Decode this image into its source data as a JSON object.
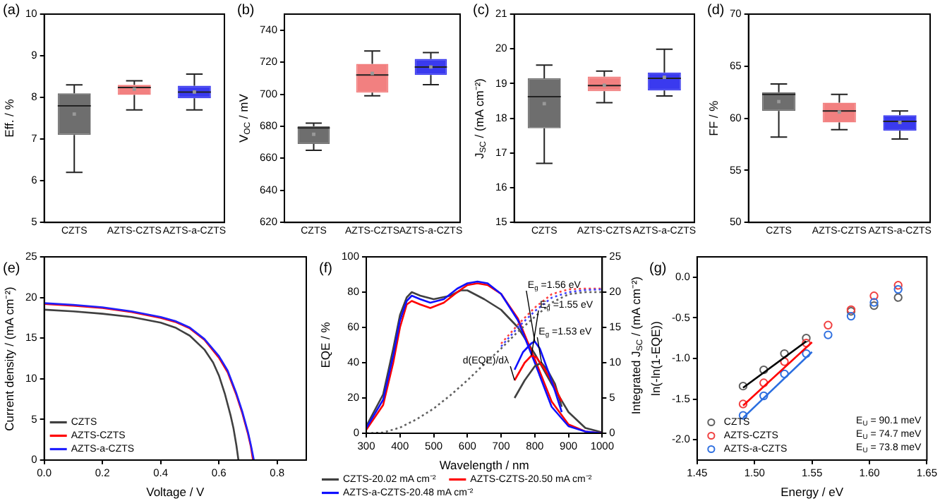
{
  "chart_data": [
    {
      "type": "box",
      "title": "(a)",
      "ylabel": "Eff. / %",
      "categories": [
        "CZTS",
        "AZTS-CZTS",
        "AZTS-a-CZTS"
      ],
      "colors": [
        "#6e6e6e",
        "#f28080",
        "#3a3aef"
      ],
      "boxes": [
        {
          "low": 6.2,
          "q1": 7.1,
          "median": 7.8,
          "q3": 8.1,
          "high": 8.3,
          "mean": 7.6
        },
        {
          "low": 7.7,
          "q1": 8.06,
          "median": 8.24,
          "q3": 8.3,
          "high": 8.4,
          "mean": 8.2
        },
        {
          "low": 7.7,
          "q1": 7.98,
          "median": 8.13,
          "q3": 8.28,
          "high": 8.56,
          "mean": 8.13
        }
      ],
      "ylim": [
        5,
        10
      ],
      "yticks": [
        5,
        6,
        7,
        8,
        9,
        10
      ]
    },
    {
      "type": "box",
      "title": "(b)",
      "ylabel": "V$_{OC}$ / mV",
      "categories": [
        "CZTS",
        "AZTS-CZTS",
        "AZTS-a-CZTS"
      ],
      "colors": [
        "#6e6e6e",
        "#f28080",
        "#3a3aef"
      ],
      "boxes": [
        {
          "low": 665,
          "q1": 669,
          "median": 679,
          "q3": 680,
          "high": 682,
          "mean": 675
        },
        {
          "low": 699,
          "q1": 701,
          "median": 712,
          "q3": 719,
          "high": 727,
          "mean": 713
        },
        {
          "low": 706,
          "q1": 712,
          "median": 717,
          "q3": 722,
          "high": 726,
          "mean": 717
        }
      ],
      "ylim": [
        620,
        750
      ],
      "yticks": [
        620,
        640,
        660,
        680,
        700,
        720,
        740
      ]
    },
    {
      "type": "box",
      "title": "(c)",
      "ylabel": "J$_{SC}$ / (mA cm⁻²)",
      "categories": [
        "CZTS",
        "AZTS-CZTS",
        "AZTS-a-CZTS"
      ],
      "colors": [
        "#6e6e6e",
        "#f28080",
        "#3a3aef"
      ],
      "boxes": [
        {
          "low": 16.7,
          "q1": 17.71,
          "median": 18.62,
          "q3": 19.15,
          "high": 19.53,
          "mean": 18.42
        },
        {
          "low": 18.45,
          "q1": 18.78,
          "median": 18.94,
          "q3": 19.2,
          "high": 19.36,
          "mean": 18.95
        },
        {
          "low": 18.64,
          "q1": 18.8,
          "median": 19.15,
          "q3": 19.32,
          "high": 19.99,
          "mean": 19.18
        }
      ],
      "ylim": [
        15,
        21
      ],
      "yticks": [
        15,
        16,
        17,
        18,
        19,
        20,
        21
      ]
    },
    {
      "type": "box",
      "title": "(d)",
      "ylabel": "FF / %",
      "categories": [
        "CZTS",
        "AZTS-CZTS",
        "AZTS-a-CZTS"
      ],
      "colors": [
        "#6e6e6e",
        "#f28080",
        "#3a3aef"
      ],
      "boxes": [
        {
          "low": 58.2,
          "q1": 60.7,
          "median": 62.3,
          "q3": 62.5,
          "high": 63.3,
          "mean": 61.6
        },
        {
          "low": 58.9,
          "q1": 59.6,
          "median": 60.7,
          "q3": 61.5,
          "high": 62.3,
          "mean": 60.6
        },
        {
          "low": 58,
          "q1": 58.8,
          "median": 59.7,
          "q3": 60.3,
          "high": 60.7,
          "mean": 59.6
        }
      ],
      "ylim": [
        50,
        70
      ],
      "yticks": [
        50,
        55,
        60,
        65,
        70
      ]
    },
    {
      "type": "line",
      "title": "(e)",
      "xlabel": "Voltage / V",
      "ylabel": "Current density / (mA cm⁻²)",
      "xlim": [
        0,
        0.9
      ],
      "xticks": [
        {
          "value": 0,
          "label": "0.0"
        },
        0.2,
        0.4,
        0.6,
        0.8
      ],
      "ylim": [
        0,
        25
      ],
      "yticks": [
        0,
        5,
        10,
        15,
        20,
        25
      ],
      "legend": "bottom left",
      "series": [
        {
          "name": "CZTS",
          "color": "#404040",
          "x": [
            0,
            0.1,
            0.2,
            0.3,
            0.4,
            0.45,
            0.5,
            0.55,
            0.58,
            0.6,
            0.62,
            0.64,
            0.65,
            0.66,
            0.667
          ],
          "values": [
            18.5,
            18.3,
            18.0,
            17.6,
            16.9,
            16.3,
            15.3,
            13.6,
            12.0,
            10.4,
            8.2,
            5.5,
            3.9,
            1.8,
            0
          ]
        },
        {
          "name": "AZTS-CZTS",
          "color": "#ff0000",
          "x": [
            0,
            0.1,
            0.2,
            0.3,
            0.4,
            0.45,
            0.5,
            0.55,
            0.6,
            0.63,
            0.66,
            0.68,
            0.7,
            0.71,
            0.717
          ],
          "values": [
            19.2,
            19.0,
            18.7,
            18.2,
            17.5,
            17.0,
            16.2,
            14.8,
            12.6,
            10.8,
            8.0,
            5.8,
            3.2,
            1.6,
            0
          ]
        },
        {
          "name": "AZTS-a-CZTS",
          "color": "#2020ff",
          "x": [
            0,
            0.1,
            0.2,
            0.3,
            0.4,
            0.45,
            0.5,
            0.55,
            0.6,
            0.63,
            0.66,
            0.68,
            0.7,
            0.71,
            0.72
          ],
          "values": [
            19.3,
            19.1,
            18.8,
            18.3,
            17.6,
            17.1,
            16.3,
            14.9,
            12.8,
            11.0,
            8.2,
            6.0,
            3.4,
            1.8,
            0
          ]
        }
      ]
    },
    {
      "type": "line",
      "title": "(f)",
      "xlabel": "Wavelength / nm",
      "ylabel": "EQE / %",
      "y2label": "Integrated J$_{SC}$ / (mA cm⁻²)",
      "xlim": [
        300,
        1000
      ],
      "xticks": [
        300,
        400,
        500,
        600,
        700,
        800,
        900,
        1000
      ],
      "ylim": [
        0,
        100
      ],
      "yticks": [
        0,
        20,
        40,
        60,
        80,
        100
      ],
      "y2lim": [
        0,
        25
      ],
      "y2ticks": [
        0,
        5,
        10,
        15,
        20,
        25
      ],
      "legend": "bottom",
      "annotations": [
        {
          "text": "E$_{g}$ =1.56 eV",
          "x": 800,
          "y": 52
        },
        {
          "text": "E$_{g}$ =1.55 eV",
          "x": 790,
          "y": 44
        },
        {
          "text": "E$_{g}$ =1.53 eV",
          "x": 820,
          "y": 40
        },
        {
          "text": "d(EQE)/dλ",
          "x": 740,
          "y": 30
        }
      ],
      "series": [
        {
          "name": "CZTS-20.02 mA cm⁻²",
          "color": "#404040",
          "x": [
            300,
            350,
            380,
            400,
            420,
            435,
            460,
            500,
            550,
            580,
            600,
            620,
            650,
            700,
            750,
            800,
            850,
            900,
            950,
            1000
          ],
          "values": [
            4,
            22,
            48,
            67,
            77,
            80,
            78,
            76,
            78,
            81,
            81,
            79,
            76,
            70,
            60,
            45,
            28,
            12,
            3,
            0.5
          ]
        },
        {
          "name": "AZTS-CZTS-20.50 mA cm⁻²",
          "color": "#ff0000",
          "x": [
            300,
            350,
            380,
            400,
            420,
            435,
            460,
            490,
            530,
            570,
            600,
            630,
            660,
            700,
            750,
            800,
            850,
            900,
            950,
            1000
          ],
          "values": [
            2,
            16,
            40,
            60,
            73,
            75,
            73,
            71,
            74,
            80,
            84,
            85,
            84,
            79,
            65,
            42,
            18,
            5,
            1,
            0
          ]
        },
        {
          "name": "AZTS-a-CZTS-20.48 mA cm⁻²",
          "color": "#1010ff",
          "x": [
            300,
            350,
            380,
            400,
            420,
            435,
            460,
            490,
            530,
            570,
            600,
            630,
            660,
            700,
            750,
            800,
            850,
            900,
            950,
            1000
          ],
          "values": [
            3,
            19,
            44,
            64,
            75,
            78,
            76,
            74,
            76,
            82,
            85,
            86,
            85,
            79,
            64,
            40,
            15,
            4,
            1,
            0
          ]
        },
        {
          "color": "#606060",
          "axis": "y2",
          "line_style": "dotted",
          "x": [
            300,
            350,
            400,
            450,
            500,
            550,
            600,
            650,
            700,
            750,
            800,
            850,
            900,
            950,
            1000
          ],
          "values": [
            0,
            0.1,
            0.8,
            2,
            3.5,
            5.4,
            7.5,
            9.8,
            12,
            14.4,
            16.5,
            18.5,
            19.7,
            20,
            20
          ]
        },
        {
          "color": "#ff4040",
          "axis": "y2",
          "line_style": "dotted",
          "x": [
            700,
            750,
            800,
            850,
            900,
            950,
            1000
          ],
          "values": [
            12.7,
            15.4,
            17.8,
            19.7,
            20.4,
            20.5,
            20.5
          ]
        },
        {
          "color": "#4040ff",
          "axis": "y2",
          "line_style": "dotted",
          "x": [
            700,
            750,
            800,
            850,
            900,
            950,
            1000
          ],
          "values": [
            12.3,
            15,
            17.3,
            19.2,
            20,
            20.3,
            20.4
          ]
        },
        {
          "color": "#404040",
          "x": [
            740,
            770,
            800,
            820,
            840,
            860,
            880
          ],
          "values": [
            20,
            30,
            38,
            40,
            35,
            28,
            15
          ]
        },
        {
          "color": "#ff0000",
          "x": [
            740,
            770,
            790,
            805,
            830,
            855,
            880
          ],
          "values": [
            30,
            40,
            44,
            43,
            36,
            28,
            18
          ]
        },
        {
          "color": "#1010ff",
          "x": [
            740,
            765,
            790,
            800,
            815,
            840,
            860,
            880
          ],
          "values": [
            36,
            46,
            51,
            52,
            48,
            35,
            24,
            12
          ]
        }
      ]
    },
    {
      "type": "scatter",
      "title": "(g)",
      "xlabel": "Energy / eV",
      "ylabel": "ln(-ln(1-EQE))",
      "xlim": [
        1.45,
        1.65
      ],
      "xticks": [
        1.45,
        {
          "value": 1.5,
          "label": "1.50"
        },
        1.55,
        {
          "value": 1.6,
          "label": "1.60"
        },
        1.65
      ],
      "ylim": [
        -2.25,
        0.25
      ],
      "yticks": [
        {
          "value": -2,
          "label": "-2.0"
        },
        -1.5,
        {
          "value": -1,
          "label": "-1.0"
        },
        -0.5,
        {
          "value": 0,
          "label": "0.0"
        }
      ],
      "legend": "bottom left",
      "marker": "circle",
      "annotations": [
        "E$_{U}$ = 90.1 meV",
        "E$_{U}$ = 74.7 meV",
        "E$_{U}$ = 73.8 meV"
      ],
      "series": [
        {
          "name": "CZTS",
          "color": "#606060",
          "x": [
            1.49,
            1.508,
            1.526,
            1.545,
            1.564,
            1.584,
            1.604,
            1.625
          ],
          "values": [
            -1.34,
            -1.14,
            -0.94,
            -0.75,
            null,
            -0.42,
            -0.35,
            -0.25
          ]
        },
        {
          "name": "AZTS-CZTS",
          "color": "#f04040",
          "x": [
            1.49,
            1.508,
            1.526,
            1.545,
            1.564,
            1.584,
            1.604,
            1.625
          ],
          "values": [
            -1.56,
            -1.3,
            -1.04,
            -0.81,
            -0.59,
            -0.4,
            -0.23,
            -0.1
          ]
        },
        {
          "name": "AZTS-a-CZTS",
          "color": "#3070e0",
          "x": [
            1.49,
            1.508,
            1.526,
            1.545,
            1.564,
            1.584,
            1.604,
            1.625
          ],
          "values": [
            -1.7,
            -1.46,
            -1.19,
            -0.94,
            -0.71,
            -0.48,
            -0.31,
            -0.15
          ]
        },
        {
          "type": "line",
          "marker": "none",
          "color": "#000000",
          "x": [
            1.49,
            1.545
          ],
          "values": [
            -1.36,
            -0.79
          ]
        },
        {
          "type": "line",
          "marker": "none",
          "color": "#ff0000",
          "x": [
            1.49,
            1.55
          ],
          "values": [
            -1.58,
            -0.8
          ]
        },
        {
          "type": "line",
          "marker": "none",
          "color": "#2a6ee0",
          "x": [
            1.49,
            1.55
          ],
          "values": [
            -1.73,
            -0.92
          ]
        }
      ]
    }
  ]
}
